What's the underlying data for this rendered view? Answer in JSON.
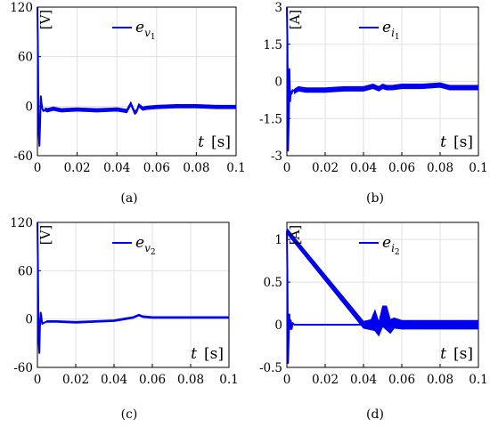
{
  "chart_data": [
    {
      "type": "line",
      "caption": "(a)",
      "unit": "[V]",
      "legend": {
        "base": "e",
        "sub": "v",
        "subsub": "1"
      },
      "xlabel": {
        "var": "t",
        "unit": "[s]"
      },
      "xlim": [
        0,
        0.1
      ],
      "ylim": [
        -60,
        120
      ],
      "xticks": [
        "0",
        "0.02",
        "0.04",
        "0.06",
        "0.08",
        "0.1"
      ],
      "xtick_values": [
        0,
        0.02,
        0.04,
        0.06,
        0.08,
        0.1
      ],
      "yticks": [
        "120",
        "60",
        "0",
        "-60"
      ],
      "ytick_values": [
        120,
        60,
        0,
        -60
      ],
      "series": [
        {
          "color": "#0000ee",
          "x": [
            0,
            0.0003,
            0.0006,
            0.001,
            0.0013,
            0.0017,
            0.002,
            0.0025,
            0.003,
            0.004,
            0.005,
            0.008,
            0.012,
            0.02,
            0.03,
            0.04,
            0.045,
            0.047,
            0.049,
            0.05,
            0.051,
            0.053,
            0.055,
            0.06,
            0.07,
            0.08,
            0.09,
            0.1
          ],
          "y": [
            120,
            60,
            -30,
            -48,
            -25,
            12,
            5,
            -3,
            -6,
            -4,
            -5,
            -3,
            -5,
            -4,
            -5,
            -4,
            -6,
            3,
            -8,
            -6,
            1,
            -3,
            -2,
            -1,
            0,
            0,
            -1,
            -1
          ],
          "band": 2
        }
      ]
    },
    {
      "type": "line",
      "caption": "(b)",
      "unit": "[A]",
      "legend": {
        "base": "e",
        "sub": "i",
        "subsub": "1"
      },
      "xlabel": {
        "var": "t",
        "unit": "[s]"
      },
      "xlim": [
        0,
        0.1
      ],
      "ylim": [
        -3,
        3
      ],
      "xticks": [
        "0",
        "0.02",
        "0.04",
        "0.06",
        "0.08",
        "0.1"
      ],
      "xtick_values": [
        0,
        0.02,
        0.04,
        0.06,
        0.08,
        0.1
      ],
      "yticks": [
        "3",
        "1.5",
        "0",
        "-1.5",
        "-3"
      ],
      "ytick_values": [
        3,
        1.5,
        0,
        -1.5,
        -3
      ],
      "series": [
        {
          "color": "#0000ee",
          "x": [
            0,
            0.0003,
            0.0006,
            0.001,
            0.0013,
            0.0017,
            0.002,
            0.0025,
            0.003,
            0.004,
            0.006,
            0.01,
            0.02,
            0.03,
            0.04,
            0.045,
            0.048,
            0.05,
            0.052,
            0.055,
            0.06,
            0.07,
            0.08,
            0.085,
            0.09,
            0.1
          ],
          "y": [
            3,
            1.5,
            -2.8,
            -1.5,
            0.5,
            -0.8,
            -0.4,
            -0.5,
            -0.35,
            -0.4,
            -0.3,
            -0.35,
            -0.35,
            -0.3,
            -0.3,
            -0.2,
            -0.3,
            -0.2,
            -0.25,
            -0.25,
            -0.2,
            -0.2,
            -0.15,
            -0.25,
            -0.25,
            -0.25
          ],
          "band": 0.09
        }
      ]
    },
    {
      "type": "line",
      "caption": "(c)",
      "unit": "[V]",
      "legend": {
        "base": "e",
        "sub": "v",
        "subsub": "2"
      },
      "xlabel": {
        "var": "t",
        "unit": "[s]"
      },
      "xlim": [
        0,
        0.1
      ],
      "ylim": [
        -60,
        120
      ],
      "xticks": [
        "0",
        "0.02",
        "0.04",
        "0.06",
        "0.08",
        "0.1"
      ],
      "xtick_values": [
        0,
        0.02,
        0.04,
        0.06,
        0.08,
        0.1
      ],
      "yticks": [
        "120",
        "60",
        "0",
        "-60"
      ],
      "ytick_values": [
        120,
        60,
        0,
        -60
      ],
      "series": [
        {
          "color": "#0000ee",
          "x": [
            0,
            0.0003,
            0.0006,
            0.001,
            0.0013,
            0.0017,
            0.002,
            0.0025,
            0.003,
            0.005,
            0.01,
            0.02,
            0.03,
            0.04,
            0.045,
            0.05,
            0.053,
            0.055,
            0.06,
            0.07,
            0.08,
            0.09,
            0.1
          ],
          "y": [
            120,
            60,
            -25,
            -42,
            -10,
            8,
            4,
            -6,
            -5,
            -3,
            -3,
            -4,
            -3,
            -2,
            0,
            2,
            5,
            3,
            2,
            2,
            2,
            2,
            2
          ],
          "band": 1
        }
      ]
    },
    {
      "type": "line",
      "caption": "(d)",
      "unit": "[A]",
      "legend": {
        "base": "e",
        "sub": "i",
        "subsub": "2"
      },
      "xlabel": {
        "var": "t",
        "unit": "[s]"
      },
      "xlim": [
        0,
        0.1
      ],
      "ylim": [
        -0.5,
        1.2
      ],
      "xticks": [
        "0",
        "0.02",
        "0.04",
        "0.06",
        "0.08",
        "0.1"
      ],
      "xtick_values": [
        0,
        0.02,
        0.04,
        0.06,
        0.08,
        0.1
      ],
      "yticks": [
        "1",
        "0.5",
        "0",
        "-0.5"
      ],
      "ytick_values": [
        1,
        0.5,
        0,
        -0.5
      ],
      "series": [
        {
          "color": "#0000ee",
          "x": [
            0,
            0.0003,
            0.0006,
            0.001,
            0.0013,
            0.0017,
            0.002,
            0.0025,
            0.003,
            0.004,
            0.006,
            0.01,
            0.02,
            0.03,
            0.04,
            0.044,
            0.046,
            0.048,
            0.05,
            0.052,
            0.054,
            0.056,
            0.06,
            0.07,
            0.08,
            0.09,
            0.1
          ],
          "y": [
            1.1,
            0.5,
            -0.45,
            -0.1,
            0.12,
            -0.05,
            0.05,
            -0.05,
            0.02,
            0,
            0,
            0,
            0,
            0,
            0,
            0,
            0.05,
            -0.05,
            0.1,
            0.08,
            -0.02,
            0.02,
            0,
            0,
            0,
            0,
            0
          ],
          "band": [
            {
              "x": 0,
              "w": 0.03
            },
            {
              "x": 0.04,
              "w": 0.04
            },
            {
              "x": 0.044,
              "w": 0.06
            },
            {
              "x": 0.046,
              "w": 0.12
            },
            {
              "x": 0.048,
              "w": 0.08
            },
            {
              "x": 0.05,
              "w": 0.12
            },
            {
              "x": 0.052,
              "w": 0.14
            },
            {
              "x": 0.054,
              "w": 0.08
            },
            {
              "x": 0.056,
              "w": 0.06
            },
            {
              "x": 0.06,
              "w": 0.05
            },
            {
              "x": 0.1,
              "w": 0.05
            }
          ]
        }
      ]
    }
  ]
}
